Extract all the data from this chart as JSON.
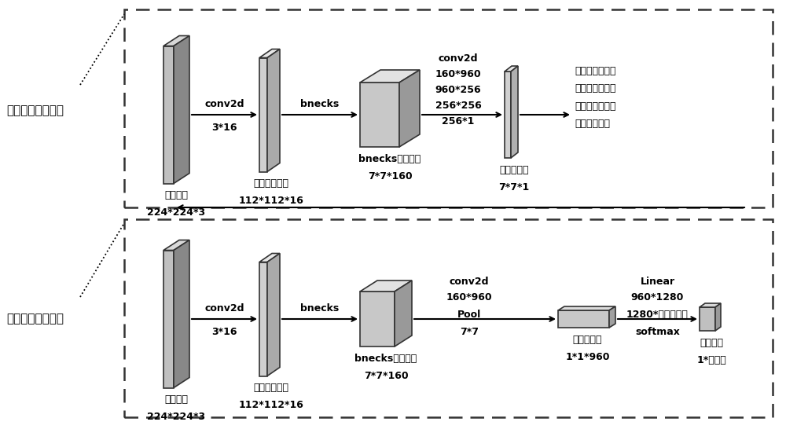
{
  "bg_color": "#ffffff",
  "stage1_label": "阶段一：缺陷定位",
  "stage2_label": "阶段二：缺陷分类",
  "face_color": "#c8c8c8",
  "side_color": "#999999",
  "top_color": "#e2e2e2",
  "edge_color": "#333333",
  "stage1_conv2d_lines": [
    "conv2d",
    "160*960",
    "960*256",
    "256*256",
    "256*1"
  ],
  "stage2_conv2d_lines": [
    "conv2d",
    "160*960",
    "Pool",
    "7*7"
  ],
  "stage2_linear_lines": [
    "Linear",
    "960*1280",
    "1280*缺陷类别数",
    "softmax"
  ],
  "stage1_desc": [
    "根据定位结果将",
    "原图缺陷位置处",
    "的部分图像抠出",
    "并作尺寸缩放"
  ]
}
